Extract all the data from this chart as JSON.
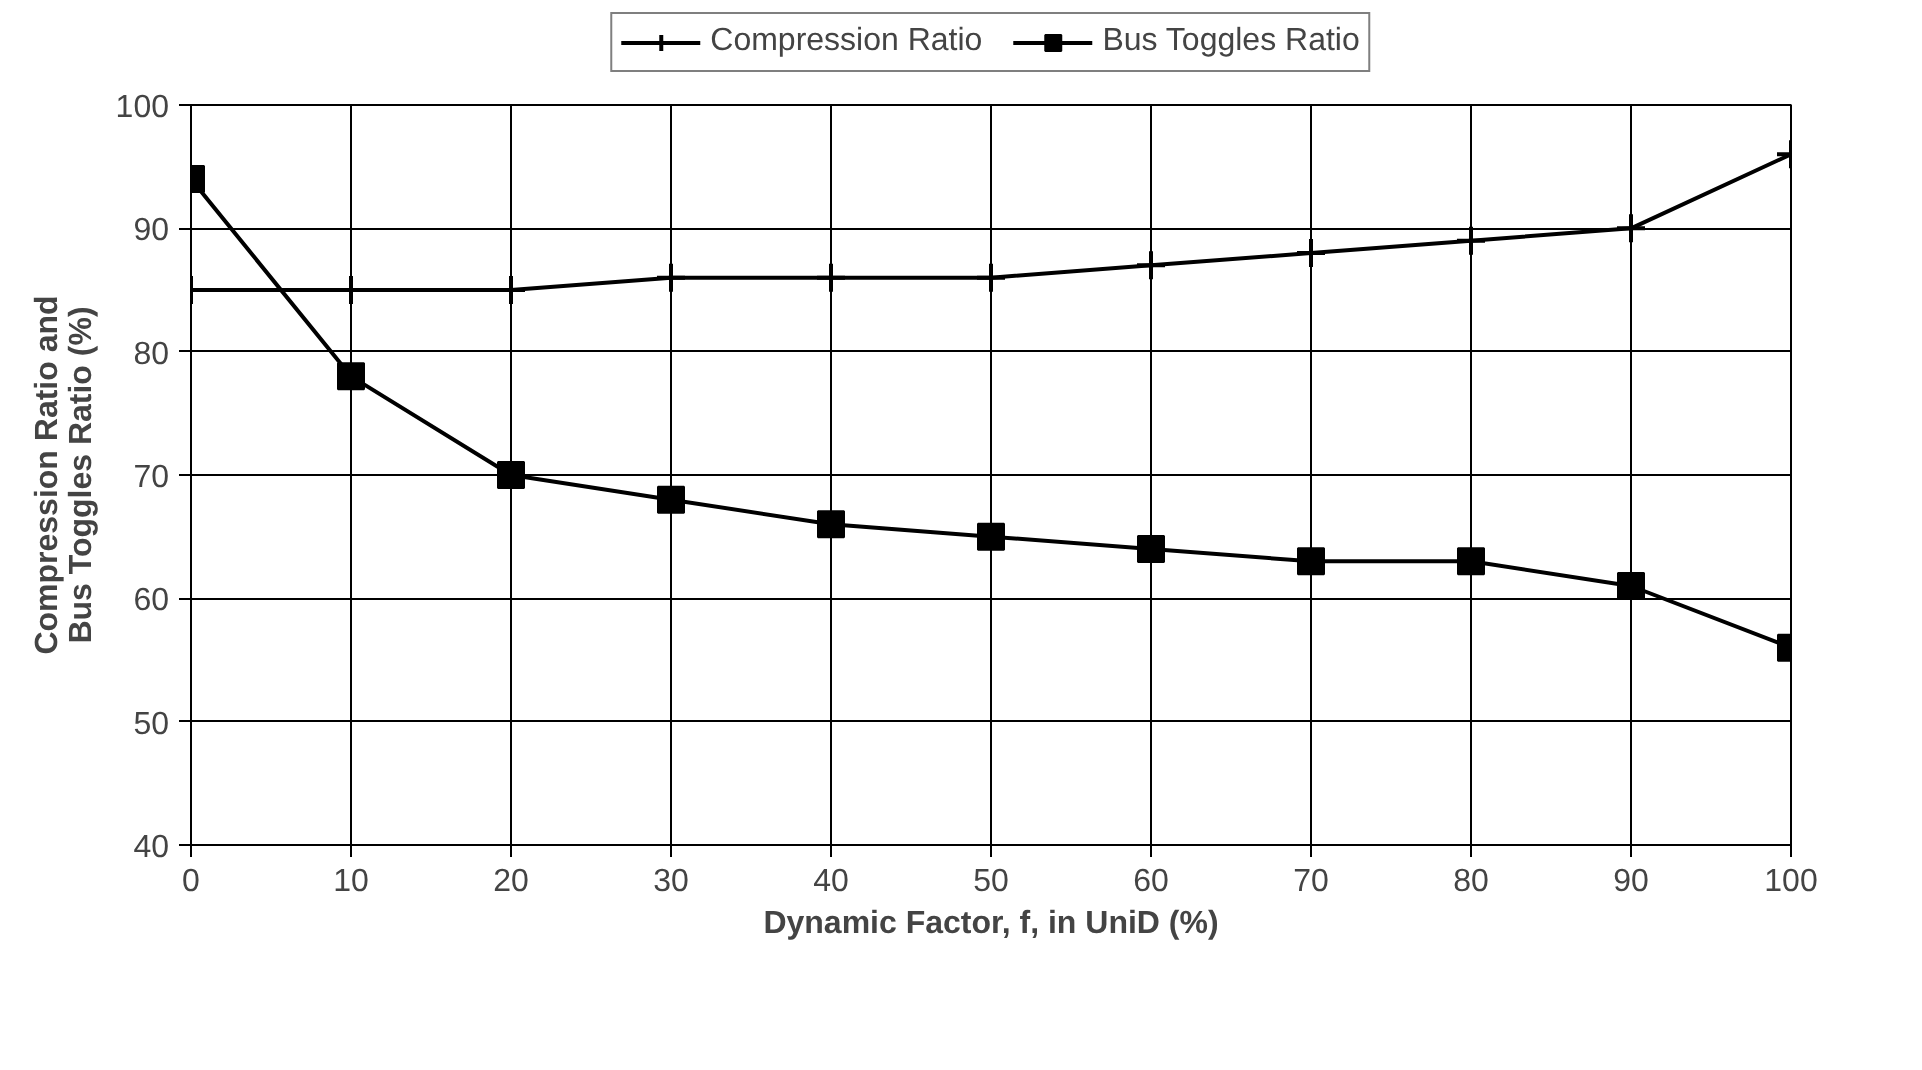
{
  "chart_data": {
    "type": "line",
    "xlabel": "Dynamic Factor, f, in UniD (%)",
    "ylabel": "Compression Ratio and\nBus Toggles Ratio (%)",
    "x": [
      0,
      10,
      20,
      30,
      40,
      50,
      60,
      70,
      80,
      90,
      100
    ],
    "series": [
      {
        "name": "Compression Ratio",
        "color": "#000000",
        "marker": "cross",
        "values": [
          85,
          85,
          85,
          86,
          86,
          86,
          87,
          88,
          89,
          90,
          96
        ]
      },
      {
        "name": "Bus Toggles Ratio",
        "color": "#000000",
        "marker": "square",
        "values": [
          94,
          78,
          70,
          68,
          66,
          65,
          64,
          63,
          63,
          61,
          56
        ]
      }
    ],
    "xlim": [
      0,
      100
    ],
    "xticks": [
      0,
      10,
      20,
      30,
      40,
      50,
      60,
      70,
      80,
      90,
      100
    ],
    "ylim": [
      40,
      100
    ],
    "yticks": [
      40,
      50,
      60,
      70,
      80,
      90,
      100
    ],
    "grid": true,
    "legend": "top",
    "line_style": "solid"
  }
}
